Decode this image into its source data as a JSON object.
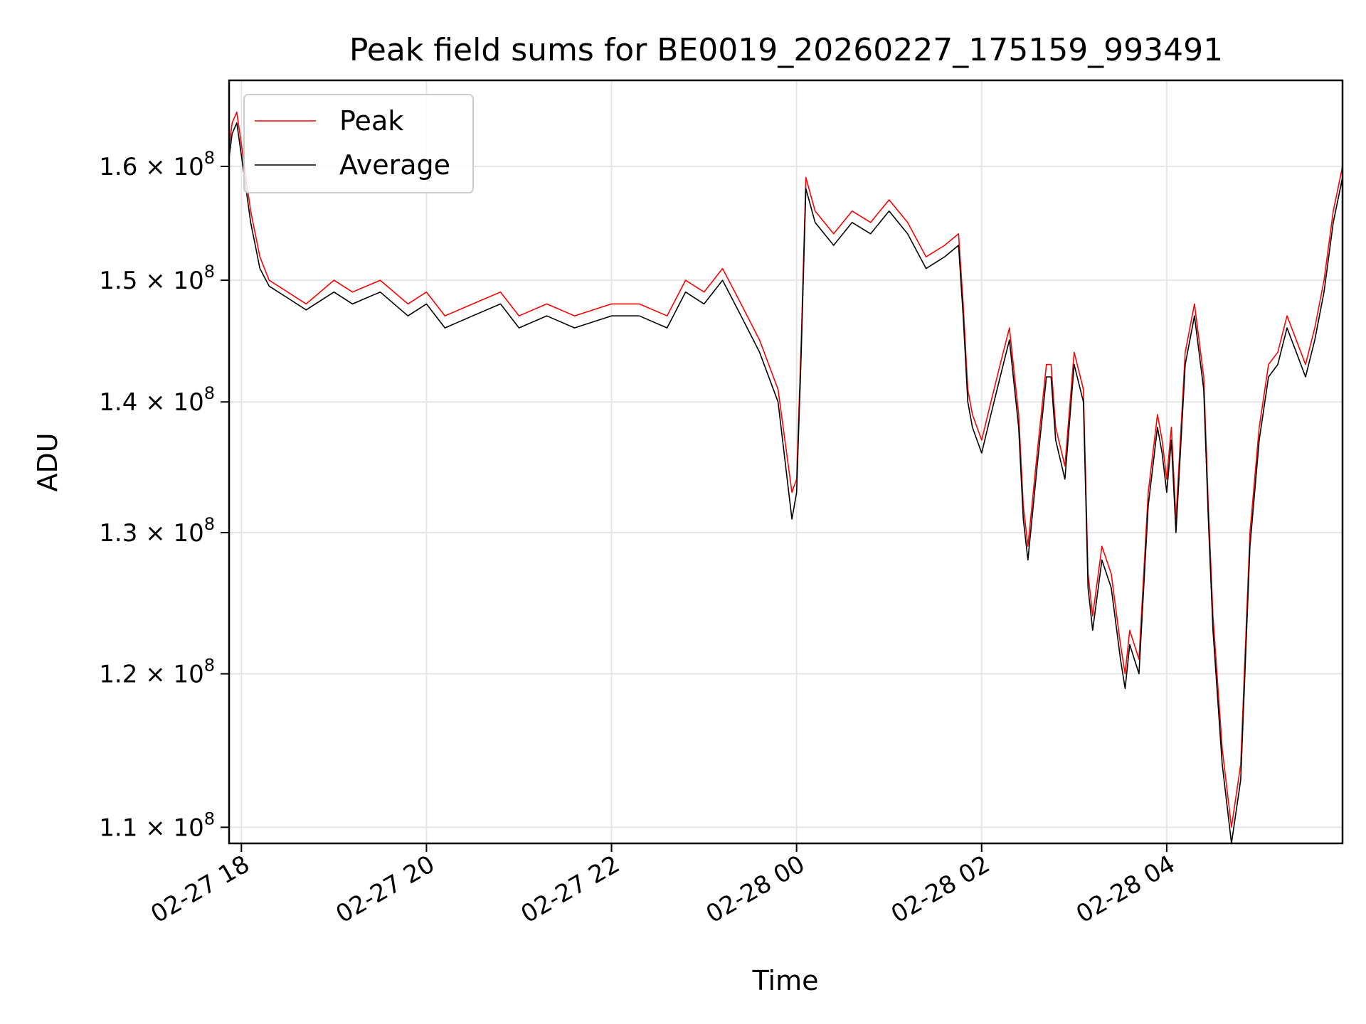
{
  "chart_data": {
    "type": "line",
    "title": "Peak field sums for BE0019_20260227_175159_993491",
    "xlabel": "Time",
    "ylabel": "ADU",
    "y_scale": "log",
    "x_units": "hours since 02-27 18:00",
    "xlim": [
      -0.133,
      11.9
    ],
    "ylim": [
      109000000.0,
      168000000.0
    ],
    "grid": true,
    "legend_position": "upper-left",
    "x_ticks": [
      {
        "value": 0,
        "label": "02-27 18"
      },
      {
        "value": 2,
        "label": "02-27 20"
      },
      {
        "value": 4,
        "label": "02-27 22"
      },
      {
        "value": 6,
        "label": "02-28 00"
      },
      {
        "value": 8,
        "label": "02-28 02"
      },
      {
        "value": 10,
        "label": "02-28 04"
      }
    ],
    "y_ticks": [
      {
        "value": 110000000.0,
        "label": "1.1",
        "exp": "8"
      },
      {
        "value": 120000000.0,
        "label": "1.2",
        "exp": "8"
      },
      {
        "value": 130000000.0,
        "label": "1.3",
        "exp": "8"
      },
      {
        "value": 140000000.0,
        "label": "1.4",
        "exp": "8"
      },
      {
        "value": 150000000.0,
        "label": "1.5",
        "exp": "8"
      },
      {
        "value": 160000000.0,
        "label": "1.6",
        "exp": "8"
      }
    ],
    "series": [
      {
        "name": "Peak",
        "color": "#ff0000",
        "x": [
          -0.13,
          -0.1,
          -0.05,
          0.0,
          0.05,
          0.1,
          0.15,
          0.2,
          0.3,
          0.5,
          0.7,
          1.0,
          1.2,
          1.5,
          1.8,
          2.0,
          2.2,
          2.5,
          2.8,
          3.0,
          3.3,
          3.6,
          4.0,
          4.3,
          4.6,
          4.8,
          5.0,
          5.2,
          5.4,
          5.6,
          5.8,
          5.95,
          6.0,
          6.05,
          6.1,
          6.2,
          6.4,
          6.6,
          6.8,
          7.0,
          7.2,
          7.4,
          7.6,
          7.75,
          7.8,
          7.85,
          7.9,
          8.0,
          8.1,
          8.2,
          8.3,
          8.4,
          8.45,
          8.5,
          8.6,
          8.7,
          8.75,
          8.8,
          8.9,
          9.0,
          9.1,
          9.15,
          9.2,
          9.3,
          9.4,
          9.5,
          9.55,
          9.6,
          9.7,
          9.8,
          9.9,
          9.95,
          10.0,
          10.05,
          10.1,
          10.2,
          10.3,
          10.4,
          10.45,
          10.5,
          10.6,
          10.7,
          10.8,
          10.9,
          11.0,
          11.1,
          11.2,
          11.3,
          11.4,
          11.5,
          11.6,
          11.7,
          11.8,
          11.9
        ],
        "values": [
          162000000.0,
          164000000.0,
          165000000.0,
          162000000.0,
          159000000.0,
          156000000.0,
          154000000.0,
          152000000.0,
          150000000.0,
          149000000.0,
          148000000.0,
          150000000.0,
          149000000.0,
          150000000.0,
          148000000.0,
          149000000.0,
          147000000.0,
          148000000.0,
          149000000.0,
          147000000.0,
          148000000.0,
          147000000.0,
          148000000.0,
          148000000.0,
          147000000.0,
          150000000.0,
          149000000.0,
          151000000.0,
          148000000.0,
          145000000.0,
          141000000.0,
          133000000.0,
          134000000.0,
          145000000.0,
          159000000.0,
          156000000.0,
          154000000.0,
          156000000.0,
          155000000.0,
          157000000.0,
          155000000.0,
          152000000.0,
          153000000.0,
          154000000.0,
          148000000.0,
          141000000.0,
          139000000.0,
          137000000.0,
          140000000.0,
          143000000.0,
          146000000.0,
          139000000.0,
          132000000.0,
          129000000.0,
          136000000.0,
          143000000.0,
          143000000.0,
          138000000.0,
          135000000.0,
          144000000.0,
          141000000.0,
          127000000.0,
          124000000.0,
          129000000.0,
          127000000.0,
          122000000.0,
          120000000.0,
          123000000.0,
          121000000.0,
          133000000.0,
          139000000.0,
          137000000.0,
          134000000.0,
          138000000.0,
          131000000.0,
          144000000.0,
          148000000.0,
          142000000.0,
          132000000.0,
          124000000.0,
          115000000.0,
          110000000.0,
          114000000.0,
          130000000.0,
          138000000.0,
          143000000.0,
          144000000.0,
          147000000.0,
          145000000.0,
          143000000.0,
          146000000.0,
          150000000.0,
          156000000.0,
          160000000.0
        ]
      },
      {
        "name": "Average",
        "color": "#000000",
        "x": [
          -0.13,
          -0.1,
          -0.05,
          0.0,
          0.05,
          0.1,
          0.15,
          0.2,
          0.3,
          0.5,
          0.7,
          1.0,
          1.2,
          1.5,
          1.8,
          2.0,
          2.2,
          2.5,
          2.8,
          3.0,
          3.3,
          3.6,
          4.0,
          4.3,
          4.6,
          4.8,
          5.0,
          5.2,
          5.4,
          5.6,
          5.8,
          5.95,
          6.0,
          6.05,
          6.1,
          6.2,
          6.4,
          6.6,
          6.8,
          7.0,
          7.2,
          7.4,
          7.6,
          7.75,
          7.8,
          7.85,
          7.9,
          8.0,
          8.1,
          8.2,
          8.3,
          8.4,
          8.45,
          8.5,
          8.6,
          8.7,
          8.75,
          8.8,
          8.9,
          9.0,
          9.1,
          9.15,
          9.2,
          9.3,
          9.4,
          9.5,
          9.55,
          9.6,
          9.7,
          9.8,
          9.9,
          9.95,
          10.0,
          10.05,
          10.1,
          10.2,
          10.3,
          10.4,
          10.45,
          10.5,
          10.6,
          10.7,
          10.8,
          10.9,
          11.0,
          11.1,
          11.2,
          11.3,
          11.4,
          11.5,
          11.6,
          11.7,
          11.8,
          11.9
        ],
        "values": [
          161000000.0,
          163000000.0,
          164000000.0,
          161000000.0,
          158000000.0,
          155000000.0,
          153000000.0,
          151000000.0,
          149500000.0,
          148500000.0,
          147500000.0,
          149000000.0,
          148000000.0,
          149000000.0,
          147000000.0,
          148000000.0,
          146000000.0,
          147000000.0,
          148000000.0,
          146000000.0,
          147000000.0,
          146000000.0,
          147000000.0,
          147000000.0,
          146000000.0,
          149000000.0,
          148000000.0,
          150000000.0,
          147000000.0,
          144000000.0,
          140000000.0,
          131000000.0,
          133000000.0,
          144000000.0,
          158000000.0,
          155000000.0,
          153000000.0,
          155000000.0,
          154000000.0,
          156000000.0,
          154000000.0,
          151000000.0,
          152000000.0,
          153000000.0,
          147000000.0,
          140000000.0,
          138000000.0,
          136000000.0,
          139000000.0,
          142000000.0,
          145000000.0,
          138000000.0,
          131000000.0,
          128000000.0,
          135000000.0,
          142000000.0,
          142000000.0,
          137000000.0,
          134000000.0,
          143000000.0,
          140000000.0,
          126000000.0,
          123000000.0,
          128000000.0,
          126000000.0,
          121000000.0,
          119000000.0,
          122000000.0,
          120000000.0,
          132000000.0,
          138000000.0,
          136000000.0,
          133000000.0,
          137000000.0,
          130000000.0,
          143000000.0,
          147000000.0,
          141000000.0,
          131000000.0,
          123000000.0,
          114000000.0,
          109000000.0,
          113000000.0,
          129000000.0,
          137000000.0,
          142000000.0,
          143000000.0,
          146000000.0,
          144000000.0,
          142000000.0,
          145000000.0,
          149000000.0,
          155000000.0,
          159000000.0
        ]
      }
    ]
  }
}
